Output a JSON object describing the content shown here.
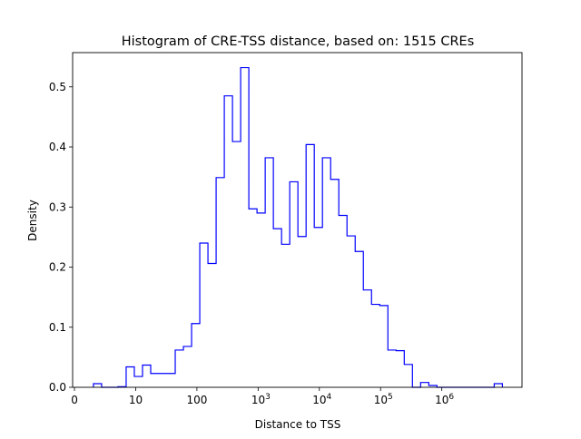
{
  "chart_data": {
    "type": "histogram-step",
    "title": "Histogram of CRE-TSS distance, based on: 1515 CREs",
    "xlabel": "Distance to TSS",
    "ylabel": "Density",
    "x_scale": "log10(distance+1)",
    "xlim": [
      -0.03,
      7.31
    ],
    "ylim": [
      0,
      0.557
    ],
    "x_ticks": [
      {
        "value": 0,
        "label": "0"
      },
      {
        "value": 1,
        "label": "10"
      },
      {
        "value": 2,
        "label": "100"
      },
      {
        "value": 3,
        "label": "10",
        "sup": "3"
      },
      {
        "value": 4,
        "label": "10",
        "sup": "4"
      },
      {
        "value": 5,
        "label": "10",
        "sup": "5"
      },
      {
        "value": 6,
        "label": "10",
        "sup": "6"
      }
    ],
    "y_ticks": [
      {
        "value": 0,
        "label": "0.0"
      },
      {
        "value": 0.1,
        "label": "0.1"
      },
      {
        "value": 0.2,
        "label": "0.2"
      },
      {
        "value": 0.3,
        "label": "0.3"
      },
      {
        "value": 0.4,
        "label": "0.4"
      },
      {
        "value": 0.5,
        "label": "0.5"
      }
    ],
    "bin_start": 0.31,
    "bin_end": 6.99,
    "values": [
      0.006,
      0,
      0,
      0.001,
      0.034,
      0.018,
      0.037,
      0.023,
      0.023,
      0.023,
      0.062,
      0.068,
      0.106,
      0.24,
      0.206,
      0.349,
      0.485,
      0.409,
      0.532,
      0.297,
      0.29,
      0.382,
      0.264,
      0.238,
      0.342,
      0.251,
      0.404,
      0.266,
      0.382,
      0.346,
      0.286,
      0.252,
      0.226,
      0.162,
      0.138,
      0.136,
      0.062,
      0.061,
      0.038,
      0,
      0.008,
      0.003,
      0,
      0,
      0,
      0,
      0,
      0,
      0,
      0.006
    ],
    "line_color": "#0000ff",
    "grid": false
  }
}
